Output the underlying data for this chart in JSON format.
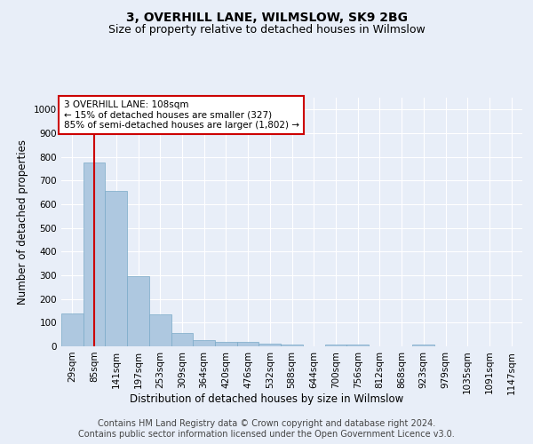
{
  "title": "3, OVERHILL LANE, WILMSLOW, SK9 2BG",
  "subtitle": "Size of property relative to detached houses in Wilmslow",
  "xlabel": "Distribution of detached houses by size in Wilmslow",
  "ylabel": "Number of detached properties",
  "categories": [
    "29sqm",
    "85sqm",
    "141sqm",
    "197sqm",
    "253sqm",
    "309sqm",
    "364sqm",
    "420sqm",
    "476sqm",
    "532sqm",
    "588sqm",
    "644sqm",
    "700sqm",
    "756sqm",
    "812sqm",
    "868sqm",
    "923sqm",
    "979sqm",
    "1035sqm",
    "1091sqm",
    "1147sqm"
  ],
  "values": [
    140,
    775,
    655,
    295,
    135,
    57,
    28,
    18,
    18,
    12,
    7,
    0,
    7,
    7,
    0,
    0,
    7,
    0,
    0,
    0,
    0
  ],
  "bar_color": "#aec8e0",
  "bar_edge_color": "#7aaac8",
  "vline_x": 1,
  "vline_color": "#cc0000",
  "annotation_text": "3 OVERHILL LANE: 108sqm\n← 15% of detached houses are smaller (327)\n85% of semi-detached houses are larger (1,802) →",
  "annotation_box_color": "#ffffff",
  "annotation_box_edge": "#cc0000",
  "ylim": [
    0,
    1050
  ],
  "yticks": [
    0,
    100,
    200,
    300,
    400,
    500,
    600,
    700,
    800,
    900,
    1000
  ],
  "footer_text": "Contains HM Land Registry data © Crown copyright and database right 2024.\nContains public sector information licensed under the Open Government Licence v3.0.",
  "bg_color": "#e8eef8",
  "plot_bg_color": "#e8eef8",
  "grid_color": "#ffffff",
  "title_fontsize": 10,
  "subtitle_fontsize": 9,
  "axis_label_fontsize": 8.5,
  "tick_fontsize": 7.5,
  "footer_fontsize": 7
}
